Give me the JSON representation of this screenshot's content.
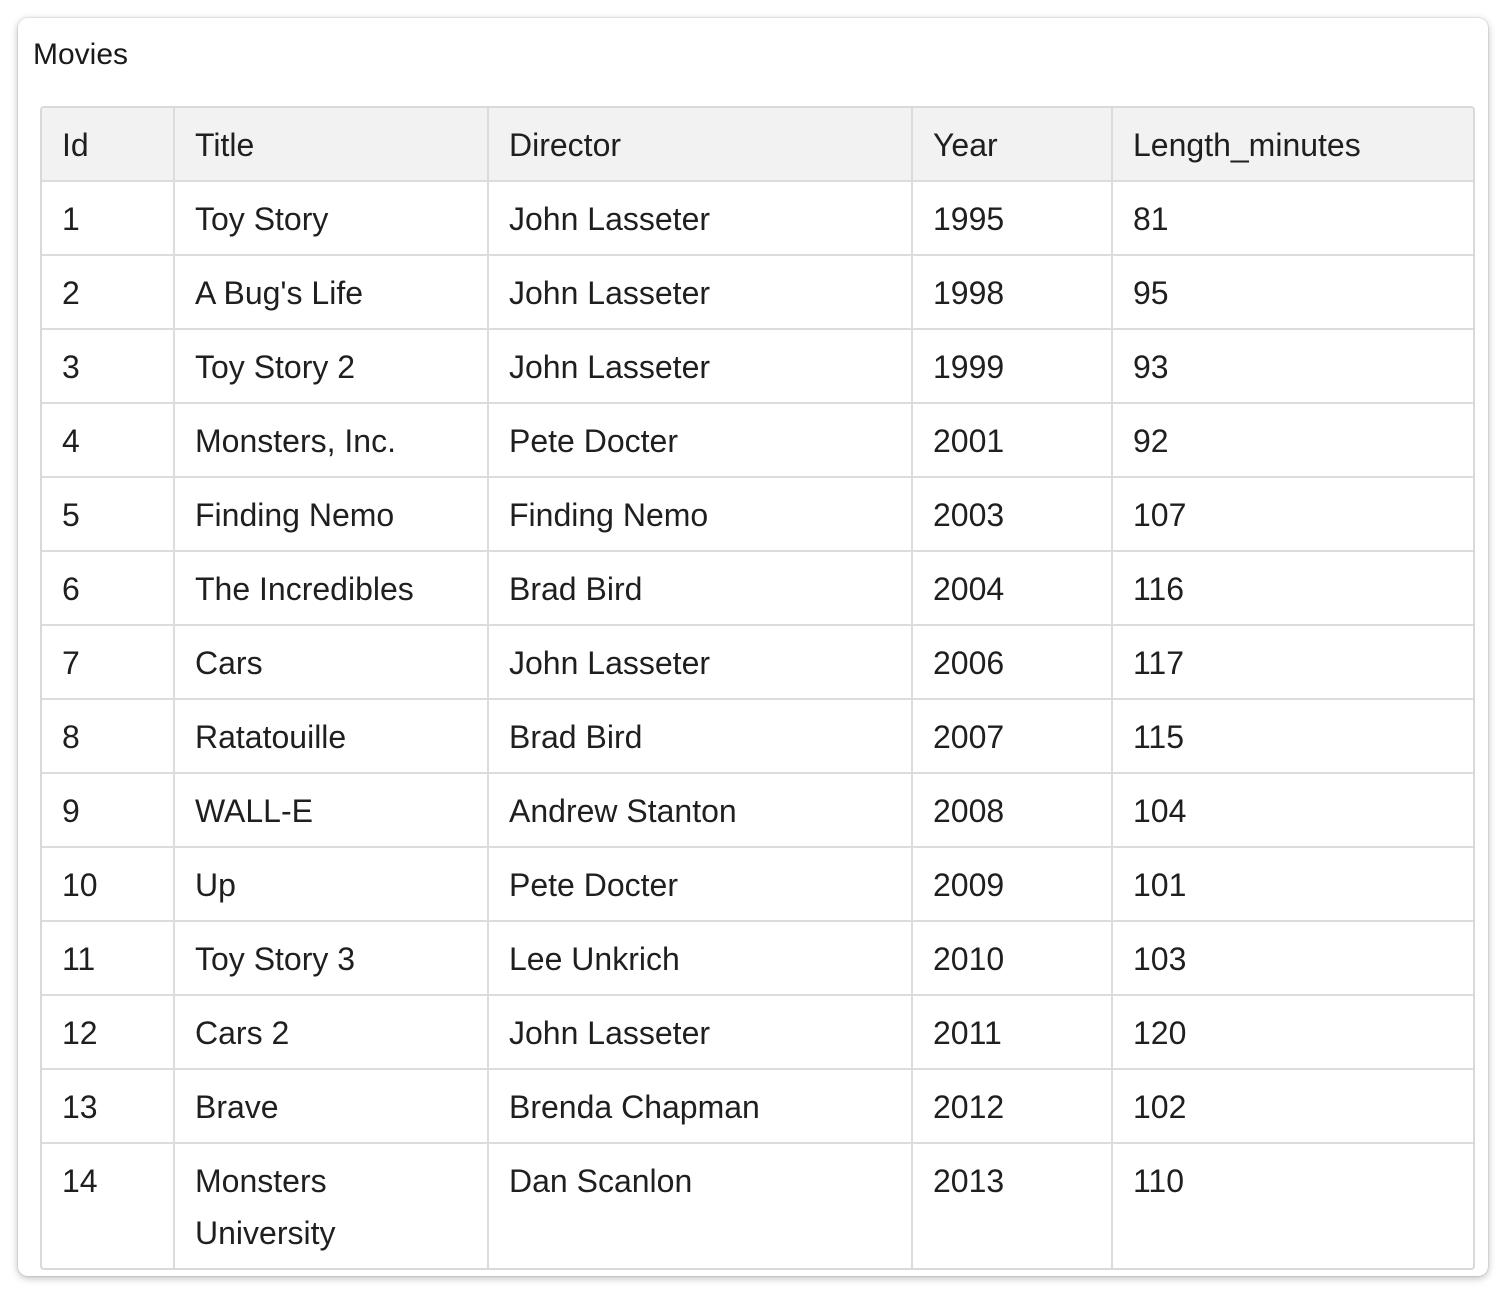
{
  "card": {
    "title": "Movies"
  },
  "table": {
    "columns": [
      "Id",
      "Title",
      "Director",
      "Year",
      "Length_minutes"
    ],
    "rows": [
      [
        "1",
        "Toy Story",
        "John Lasseter",
        "1995",
        "81"
      ],
      [
        "2",
        "A Bug's Life",
        "John Lasseter",
        "1998",
        "95"
      ],
      [
        "3",
        "Toy Story 2",
        "John Lasseter",
        "1999",
        "93"
      ],
      [
        "4",
        "Monsters, Inc.",
        "Pete Docter",
        "2001",
        "92"
      ],
      [
        "5",
        "Finding Nemo",
        "Finding Nemo",
        "2003",
        "107"
      ],
      [
        "6",
        "The Incredibles",
        "Brad Bird",
        "2004",
        "116"
      ],
      [
        "7",
        "Cars",
        "John Lasseter",
        "2006",
        "117"
      ],
      [
        "8",
        "Ratatouille",
        "Brad Bird",
        "2007",
        "115"
      ],
      [
        "9",
        "WALL-E",
        "Andrew Stanton",
        "2008",
        "104"
      ],
      [
        "10",
        "Up",
        "Pete Docter",
        "2009",
        "101"
      ],
      [
        "11",
        "Toy Story 3",
        "Lee Unkrich",
        "2010",
        "103"
      ],
      [
        "12",
        "Cars 2",
        "John Lasseter",
        "2011",
        "120"
      ],
      [
        "13",
        "Brave",
        "Brenda Chapman",
        "2012",
        "102"
      ],
      [
        "14",
        "Monsters University",
        "Dan Scanlon",
        "2013",
        "110"
      ]
    ]
  }
}
